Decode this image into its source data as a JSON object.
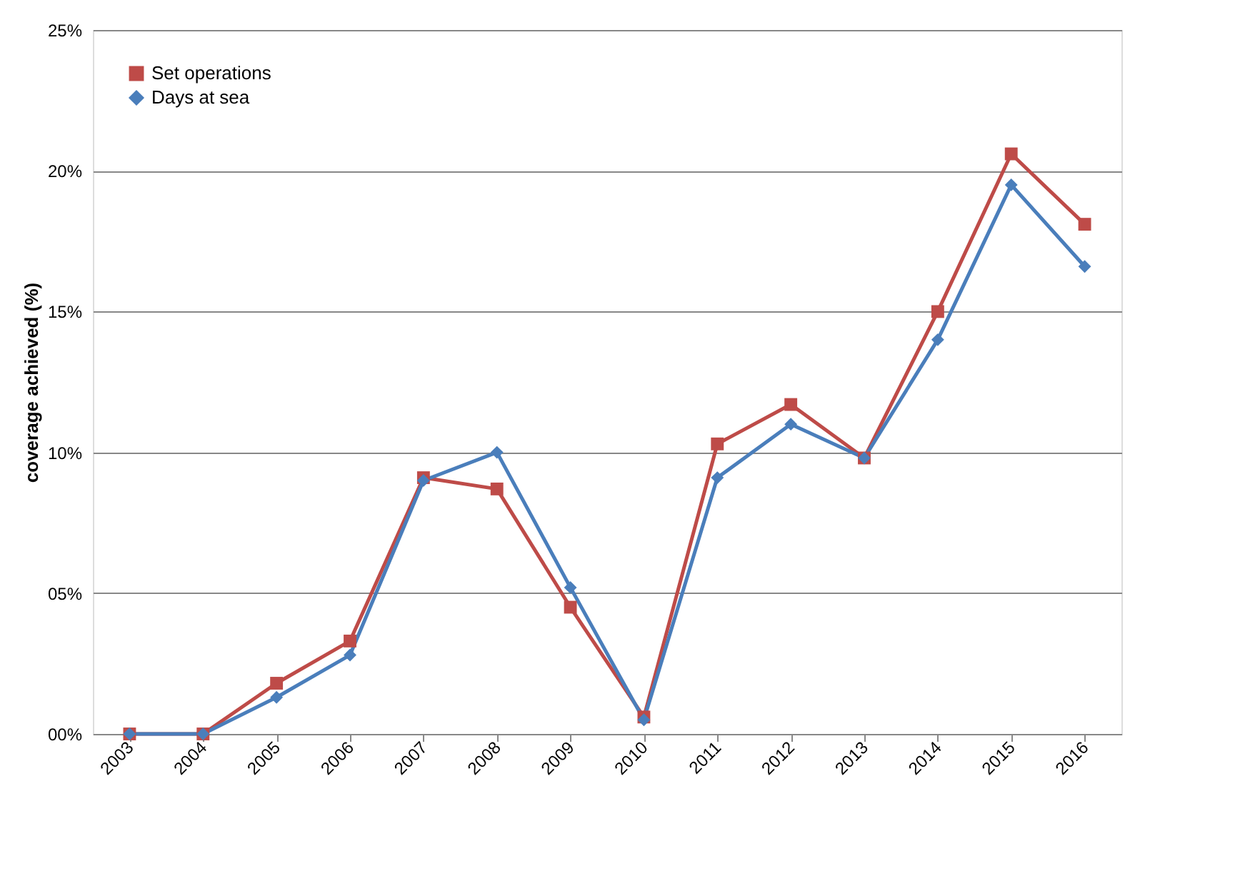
{
  "chart_data": {
    "type": "line",
    "ylabel": "coverage achieved (%)",
    "categories": [
      "2003",
      "2004",
      "2005",
      "2006",
      "2007",
      "2008",
      "2009",
      "2010",
      "2011",
      "2012",
      "2013",
      "2014",
      "2015",
      "2016"
    ],
    "series": [
      {
        "name": "Set operations",
        "color": "#be4b48",
        "marker": "square",
        "values": [
          0,
          0,
          1.8,
          3.3,
          9.1,
          8.7,
          4.5,
          0.6,
          10.3,
          11.7,
          9.8,
          15.0,
          20.6,
          18.1
        ]
      },
      {
        "name": "Days at sea",
        "color": "#4a7ebb",
        "marker": "diamond",
        "values": [
          0,
          0,
          1.3,
          2.8,
          9.0,
          10.0,
          5.2,
          0.5,
          9.1,
          11.0,
          9.8,
          14.0,
          19.5,
          16.6
        ]
      }
    ],
    "ylim": [
      0,
      25
    ],
    "yticks": [
      {
        "value": 0,
        "label": "00%"
      },
      {
        "value": 5,
        "label": "05%"
      },
      {
        "value": 10,
        "label": "10%"
      },
      {
        "value": 15,
        "label": "15%"
      },
      {
        "value": 20,
        "label": "20%"
      },
      {
        "value": 25,
        "label": "25%"
      }
    ],
    "grid": "y",
    "legend": "top left",
    "line_style": "solid"
  }
}
